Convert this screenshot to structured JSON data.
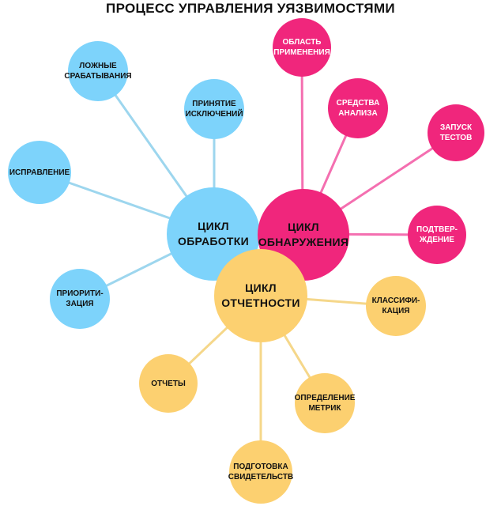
{
  "title": "ПРОЦЕСС УПРАВЛЕНИЯ УЯЗВИМОСТЯМИ",
  "colors": {
    "blue": "#7dd3fb",
    "pink": "#f0267c",
    "yellow": "#fcd070",
    "blue_link": "#9dd6ee",
    "pink_link": "#f46fb0",
    "yellow_link": "#f5d78a"
  },
  "cycles": {
    "processing": {
      "label": "ЦИКЛ\nОБРАБОТКИ",
      "children": [
        "ЛОЖНЫЕ\nСРАБАТЫВАНИЯ",
        "ПРИНЯТИЕ\nИСКЛЮЧЕНИЙ",
        "ИСПРАВЛЕНИЕ",
        "ПРИОРИТИ-\nЗАЦИЯ"
      ]
    },
    "detection": {
      "label": "ЦИКЛ\nОБНАРУЖЕНИЯ",
      "children": [
        "ОБЛАСТЬ\nПРИМЕНЕНИЯ",
        "СРЕДСТВА\nАНАЛИЗА",
        "ЗАПУСК\nТЕСТОВ",
        "ПОДТВЕР-\nЖДЕНИЕ"
      ]
    },
    "reporting": {
      "label": "ЦИКЛ\nОТЧЕТНОСТИ",
      "children": [
        "КЛАССИФИ-\nКАЦИЯ",
        "ОПРЕДЕЛЕНИЕ\nМЕТРИК",
        "ПОДГОТОВКА\nСВИДЕТЕЛЬСТВ",
        "ОТЧЕТЫ"
      ]
    }
  }
}
